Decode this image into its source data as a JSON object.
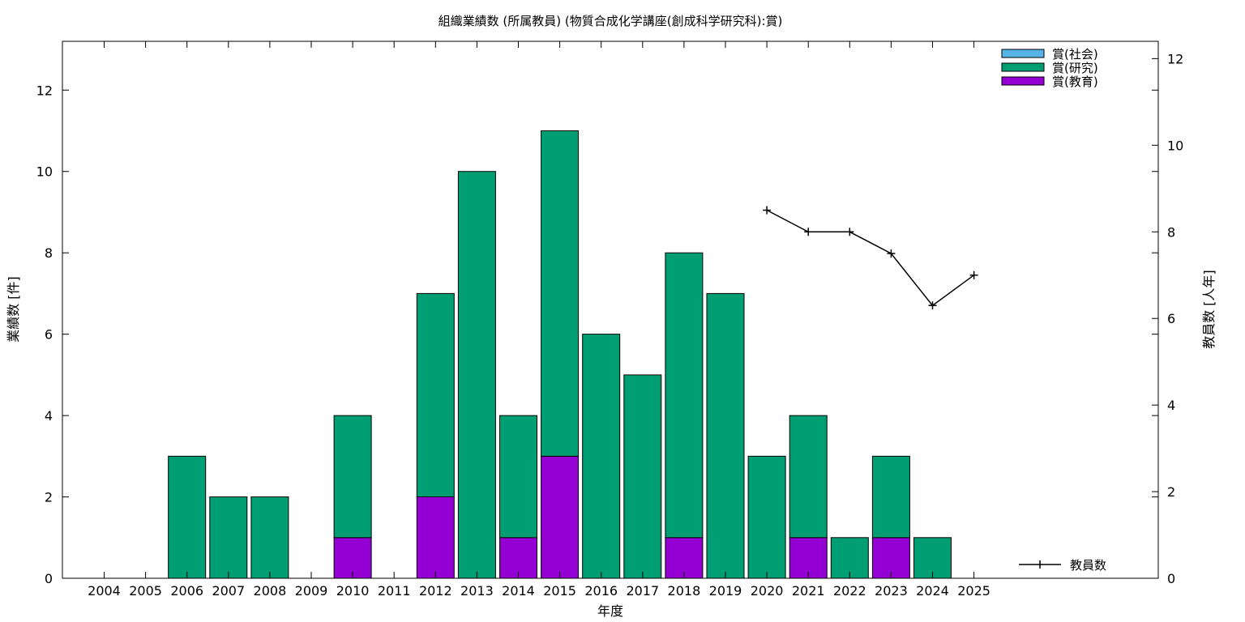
{
  "chart_data": {
    "type": "bar",
    "title": "組織業績数 (所属教員) (物質合成化学講座(創成科学研究科):賞)",
    "xlabel": "年度",
    "ylabel": "業績数 [件]",
    "y2label": "教員数 [人年]",
    "ylim": [
      0,
      13.2
    ],
    "y2lim": [
      0,
      12.4
    ],
    "yticks": [
      0,
      2,
      4,
      6,
      8,
      10,
      12
    ],
    "y2ticks": [
      0,
      2,
      4,
      6,
      8,
      10,
      12
    ],
    "categories": [
      "2004",
      "2005",
      "2006",
      "2007",
      "2008",
      "2009",
      "2010",
      "2011",
      "2012",
      "2013",
      "2014",
      "2015",
      "2016",
      "2017",
      "2018",
      "2019",
      "2020",
      "2021",
      "2022",
      "2023",
      "2024",
      "2025"
    ],
    "stacked": true,
    "series": [
      {
        "name": "賞(教育)",
        "color": "#9400d3",
        "values": [
          0,
          0,
          0,
          0,
          0,
          0,
          1,
          0,
          2,
          0,
          1,
          3,
          0,
          0,
          1,
          0,
          0,
          1,
          0,
          1,
          0,
          0
        ]
      },
      {
        "name": "賞(研究)",
        "color": "#009e73",
        "values": [
          0,
          0,
          3,
          2,
          2,
          0,
          3,
          0,
          5,
          10,
          3,
          8,
          6,
          5,
          7,
          7,
          3,
          3,
          1,
          2,
          1,
          0
        ]
      },
      {
        "name": "賞(社会)",
        "color": "#56b4e9",
        "values": [
          0,
          0,
          0,
          0,
          0,
          0,
          0,
          0,
          0,
          0,
          0,
          0,
          0,
          0,
          0,
          0,
          0,
          0,
          0,
          0,
          0,
          0
        ]
      }
    ],
    "legend_order": [
      "賞(社会)",
      "賞(研究)",
      "賞(教育)"
    ],
    "legend_position": "top-right",
    "line_series": {
      "name": "教員数",
      "color": "#000000",
      "axis": "y2",
      "x": [
        "2020",
        "2021",
        "2022",
        "2023",
        "2024",
        "2025"
      ],
      "values": [
        8.5,
        8.0,
        8.0,
        7.5,
        6.3,
        7.0
      ]
    },
    "line_legend_position": "bottom-right",
    "grid": false
  }
}
